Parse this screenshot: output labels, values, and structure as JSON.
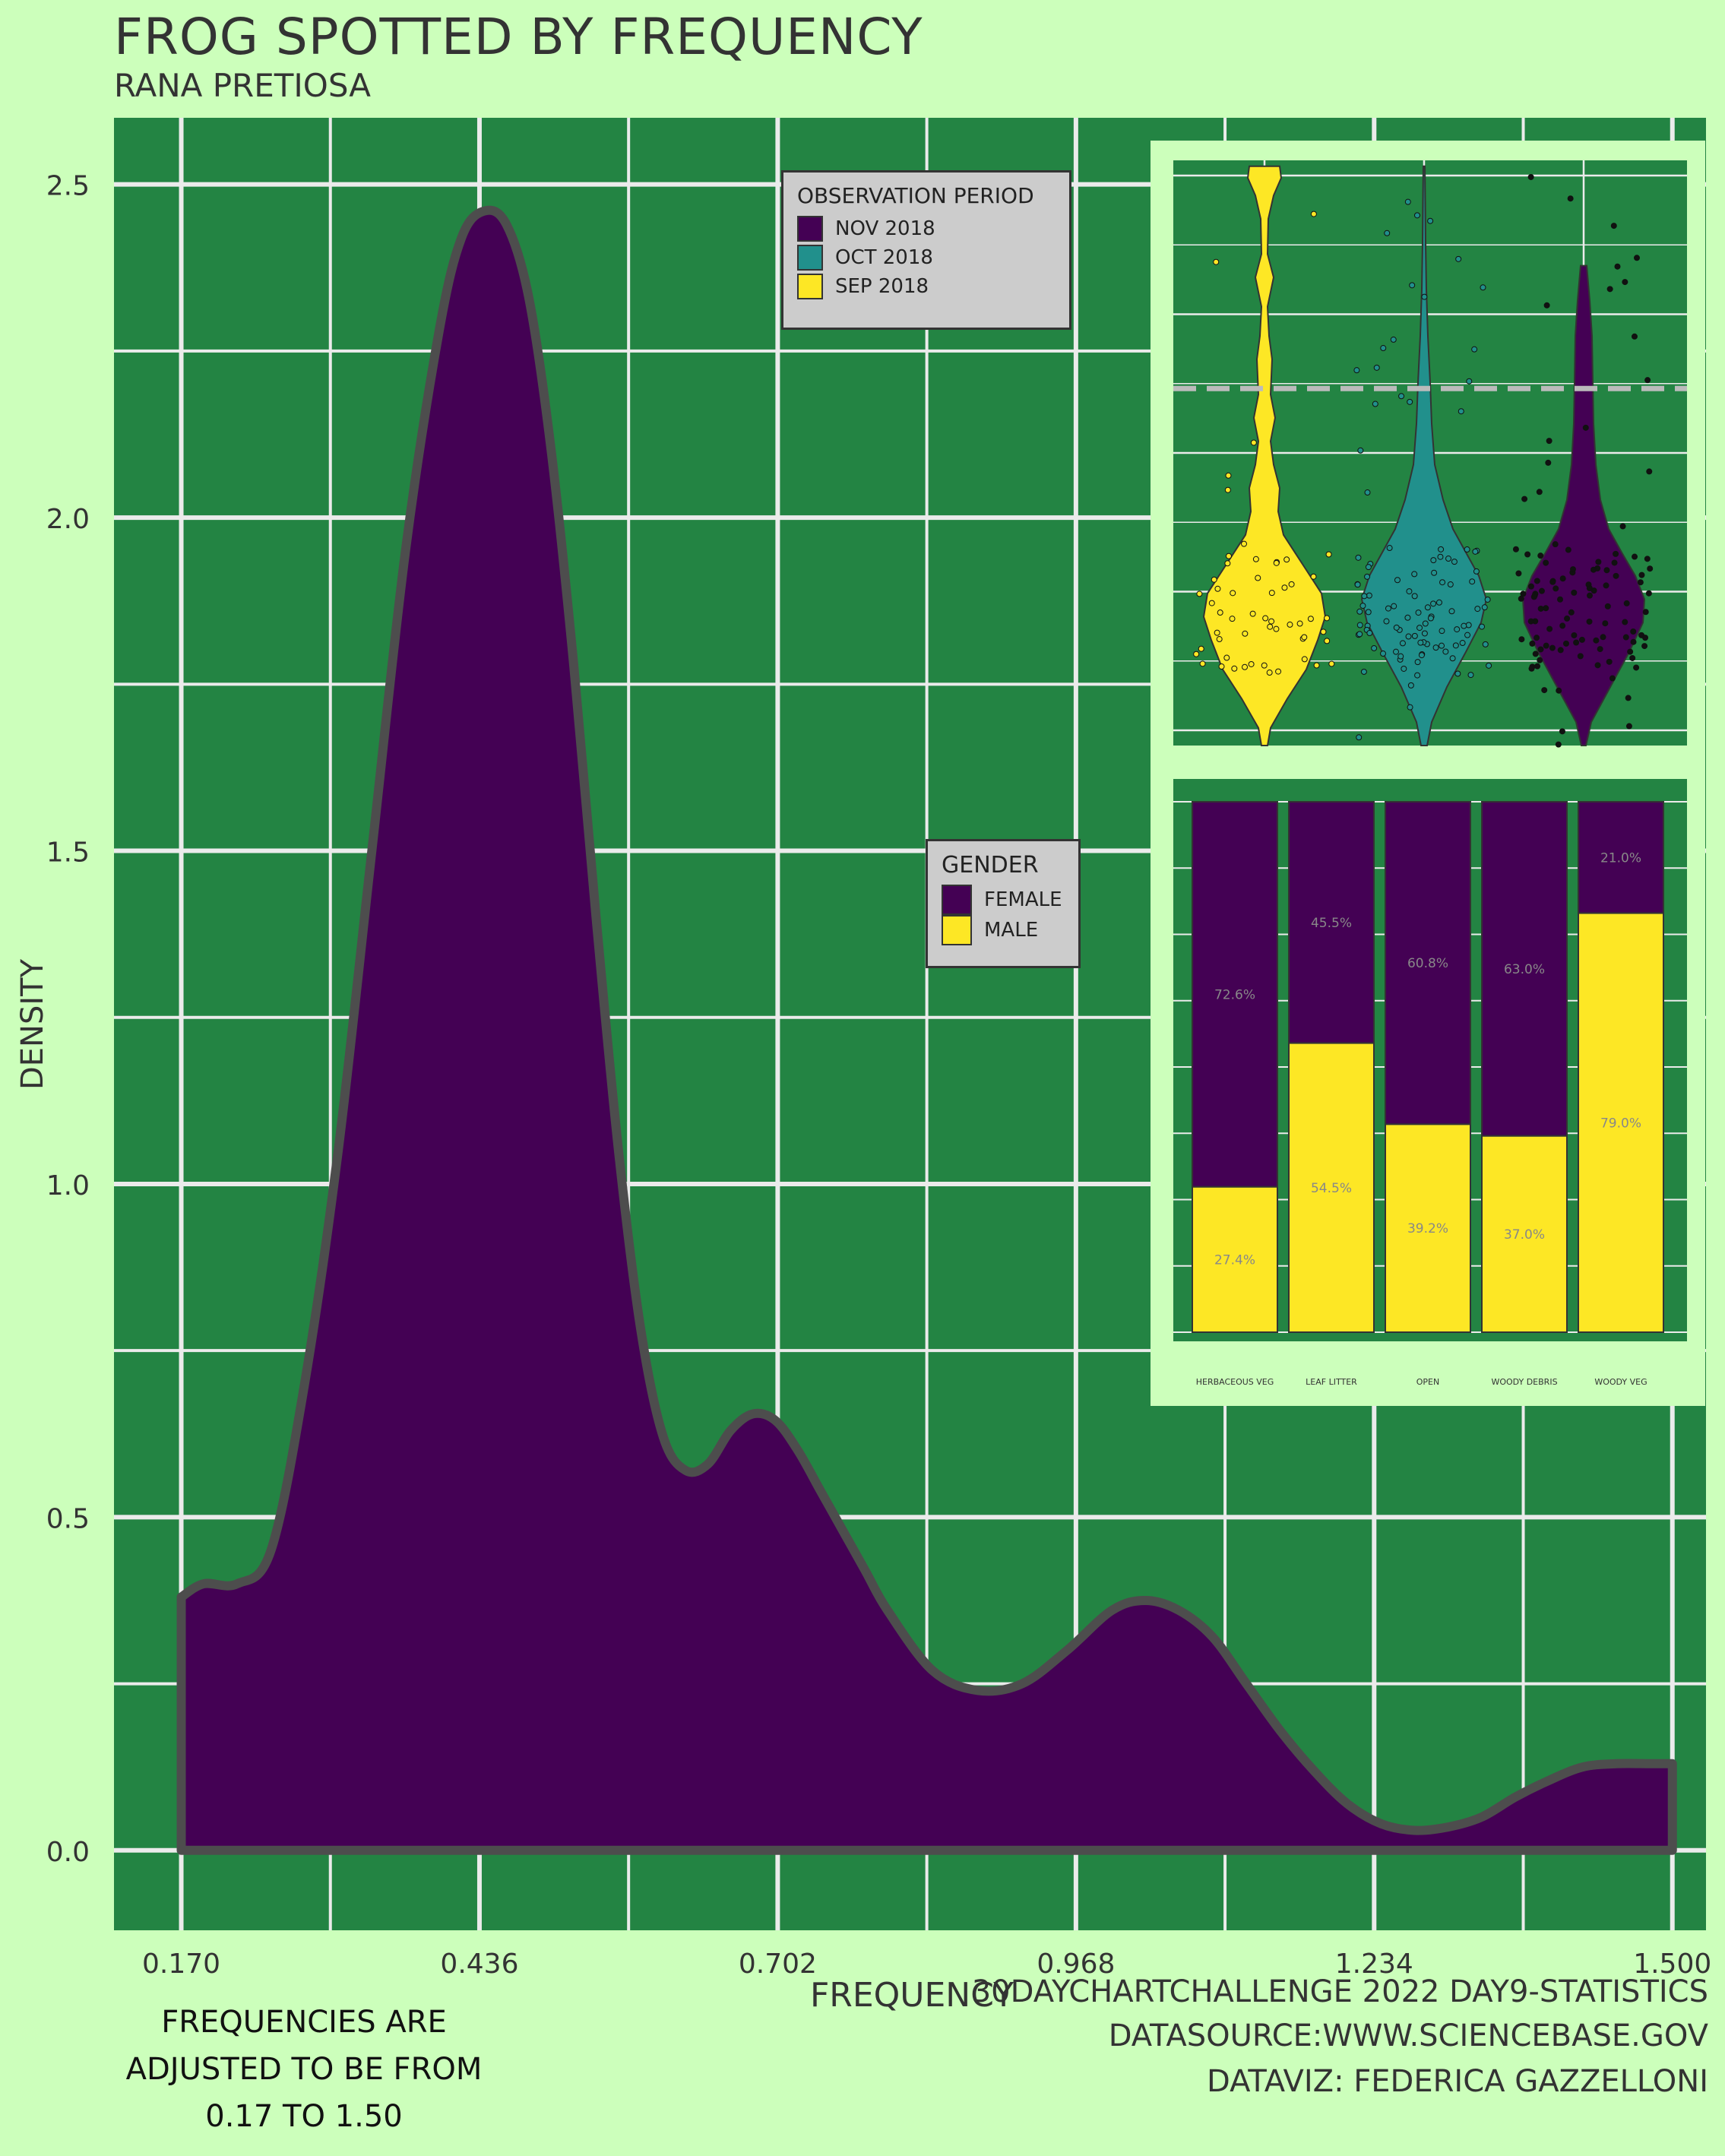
{
  "title": "FROG SPOTTED BY FREQUENCY",
  "subtitle": "RANA PRETIOSA",
  "note": "FREQUENCIES ARE ADJUSTED TO BE FROM 0.17 TO 1.50",
  "caption": {
    "line1": "30DAYCHARTCHALLENGE 2022 DAY9-STATISTICS",
    "line2": "DATASOURCE:WWW.SCIENCEBASE.GOV",
    "line3": "DATAVIZ: FEDERICA GAZZELLONI"
  },
  "colors": {
    "background": "#ccffbb",
    "panel": "#238443",
    "grid": "#ebebeb",
    "nov": "#440154",
    "oct": "#21908c",
    "sep": "#fde725",
    "outline": "#4d4d4d"
  },
  "legend_period": {
    "title": "OBSERVATION PERIOD",
    "items": [
      {
        "label": "NOV 2018",
        "color": "#440154"
      },
      {
        "label": "OCT 2018",
        "color": "#21908c"
      },
      {
        "label": "SEP 2018",
        "color": "#fde725"
      }
    ]
  },
  "legend_gender": {
    "title": "GENDER",
    "items": [
      {
        "label": "FEMALE",
        "color": "#440154"
      },
      {
        "label": "MALE",
        "color": "#fde725"
      }
    ]
  },
  "chart_data": [
    {
      "type": "area",
      "title": "FROG SPOTTED BY FREQUENCY",
      "subtitle": "RANA PRETIOSA",
      "xlabel": "FREQUENCY",
      "ylabel": "DENSITY",
      "x_ticks": [
        "0.170",
        "0.436",
        "0.702",
        "0.968",
        "1.234",
        "1.500"
      ],
      "y_ticks": [
        "0.0",
        "0.5",
        "1.0",
        "1.5",
        "2.0",
        "2.5"
      ],
      "xlim": [
        0.11,
        1.53
      ],
      "ylim": [
        -0.12,
        2.6
      ],
      "grid": true,
      "x": [
        0.17,
        0.19,
        0.22,
        0.25,
        0.28,
        0.31,
        0.34,
        0.37,
        0.4,
        0.42,
        0.44,
        0.46,
        0.48,
        0.5,
        0.52,
        0.54,
        0.56,
        0.58,
        0.6,
        0.62,
        0.64,
        0.66,
        0.68,
        0.7,
        0.72,
        0.74,
        0.76,
        0.78,
        0.8,
        0.84,
        0.88,
        0.92,
        0.96,
        1.0,
        1.03,
        1.06,
        1.09,
        1.12,
        1.15,
        1.18,
        1.21,
        1.24,
        1.27,
        1.3,
        1.33,
        1.36,
        1.39,
        1.42,
        1.45,
        1.48,
        1.5
      ],
      "y": [
        0.38,
        0.4,
        0.4,
        0.45,
        0.7,
        1.05,
        1.5,
        1.95,
        2.28,
        2.42,
        2.46,
        2.44,
        2.33,
        2.1,
        1.78,
        1.4,
        1.05,
        0.78,
        0.62,
        0.57,
        0.58,
        0.63,
        0.655,
        0.645,
        0.6,
        0.54,
        0.48,
        0.42,
        0.36,
        0.27,
        0.24,
        0.25,
        0.3,
        0.36,
        0.375,
        0.36,
        0.32,
        0.25,
        0.18,
        0.12,
        0.07,
        0.04,
        0.03,
        0.035,
        0.05,
        0.08,
        0.105,
        0.125,
        0.13,
        0.13,
        0.13
      ],
      "series_color": "#440154"
    },
    {
      "type": "violin",
      "categories": [
        "SEP 2018",
        "OCT 2018",
        "NOV 2018"
      ],
      "colors": [
        "#fde725",
        "#21908c",
        "#440154"
      ],
      "reference_line": 0.61,
      "ylim": [
        0.0,
        1.0
      ],
      "grid": true
    },
    {
      "type": "bar",
      "stacked": true,
      "categories": [
        "HERBACEOUS VEG",
        "LEAF LITTER",
        "OPEN",
        "WOODY DEBRIS",
        "WOODY VEG"
      ],
      "series": [
        {
          "name": "FEMALE",
          "values": [
            72.6,
            45.5,
            60.8,
            63.0,
            21.0
          ],
          "labels": [
            "72.6%",
            "45.5%",
            "60.8%",
            "63.0%",
            "21.0%"
          ]
        },
        {
          "name": "MALE",
          "values": [
            27.4,
            54.5,
            39.2,
            37.0,
            79.0
          ],
          "labels": [
            "27.4%",
            "54.5%",
            "39.2%",
            "37.0%",
            "79.0%"
          ]
        }
      ],
      "ylim": [
        0,
        100
      ]
    }
  ]
}
